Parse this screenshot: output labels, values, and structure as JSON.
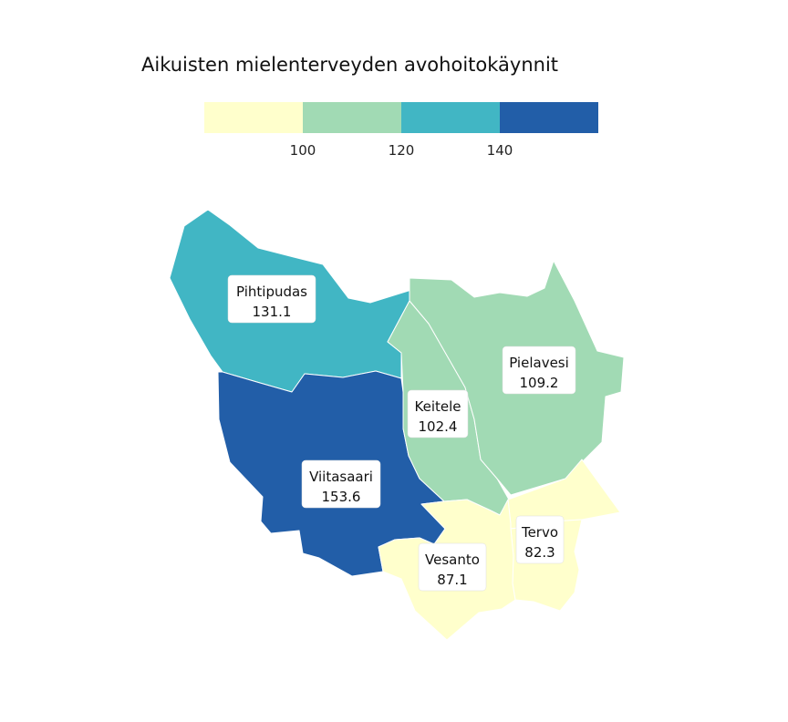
{
  "title": "Aikuisten mielenterveyden avohoitokäynnit",
  "legend": {
    "bins": [
      {
        "color": "#ffffcc"
      },
      {
        "color": "#a1dab4"
      },
      {
        "color": "#41b6c4"
      },
      {
        "color": "#225ea8"
      }
    ],
    "ticks": [
      "100",
      "120",
      "140"
    ]
  },
  "regions": [
    {
      "name": "Pihtipudas",
      "value": "131.1",
      "color": "#41b6c4"
    },
    {
      "name": "Viitasaari",
      "value": "153.6",
      "color": "#225ea8"
    },
    {
      "name": "Keitele",
      "value": "102.4",
      "color": "#a1dab4"
    },
    {
      "name": "Pielavesi",
      "value": "109.2",
      "color": "#a1dab4"
    },
    {
      "name": "Tervo",
      "value": "82.3",
      "color": "#ffffcc"
    },
    {
      "name": "Vesanto",
      "value": "87.1",
      "color": "#ffffcc"
    }
  ]
}
